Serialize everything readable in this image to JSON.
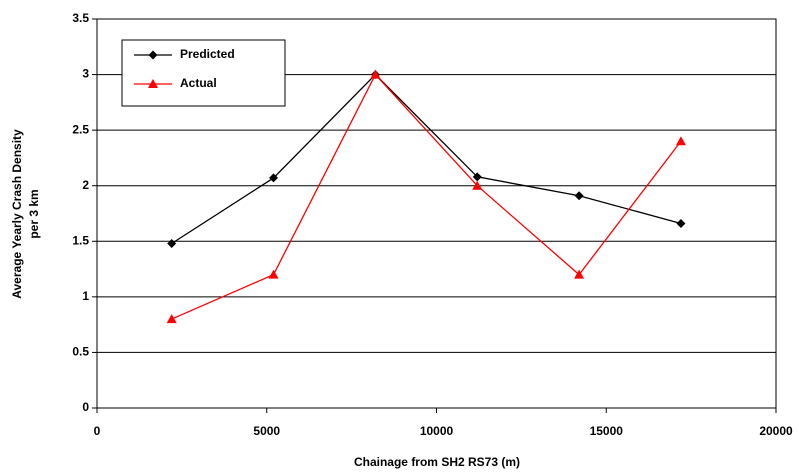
{
  "chart_data": {
    "type": "line",
    "xlabel": "Chainage from SH2 RS73 (m)",
    "ylabel": [
      "Average Yearly Crash Density",
      "per 3 km"
    ],
    "x": [
      2200,
      5200,
      8200,
      11200,
      14200,
      17200
    ],
    "series": [
      {
        "name": "Predicted",
        "color": "#000000",
        "marker": "diamond",
        "values": [
          1.48,
          2.07,
          3.0,
          2.08,
          1.91,
          1.66
        ]
      },
      {
        "name": "Actual",
        "color": "#ff0000",
        "marker": "triangle",
        "values": [
          0.8,
          1.2,
          3.0,
          2.0,
          1.2,
          2.4
        ]
      }
    ],
    "xlim": [
      0,
      20000
    ],
    "xticks": [
      0,
      5000,
      10000,
      15000,
      20000
    ],
    "ylim": [
      0,
      3.5
    ],
    "yticks": [
      0,
      0.5,
      1,
      1.5,
      2,
      2.5,
      3,
      3.5
    ],
    "grid": true,
    "legend": "upper left"
  }
}
